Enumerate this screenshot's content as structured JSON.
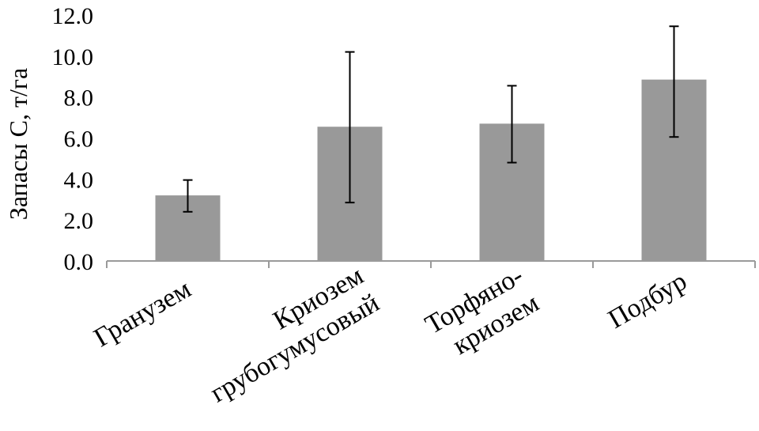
{
  "chart_data": {
    "type": "bar",
    "ylabel": "Запасы С, т/га",
    "ylim": [
      0,
      12
    ],
    "yticks": [
      "0.0",
      "2.0",
      "4.0",
      "6.0",
      "8.0",
      "10.0",
      "12.0"
    ],
    "categories": [
      [
        "Гранузем"
      ],
      [
        "Криозем",
        "грубогумусовый"
      ],
      [
        "Торфяно-",
        "криозем"
      ],
      [
        "Подбур"
      ]
    ],
    "values": [
      3.2,
      6.55,
      6.7,
      8.85
    ],
    "error_upper": [
      3.95,
      10.2,
      8.55,
      11.45
    ],
    "error_lower": [
      2.4,
      2.85,
      4.8,
      6.05
    ],
    "bar_color": "#999999",
    "grid": false,
    "legend": "none"
  }
}
